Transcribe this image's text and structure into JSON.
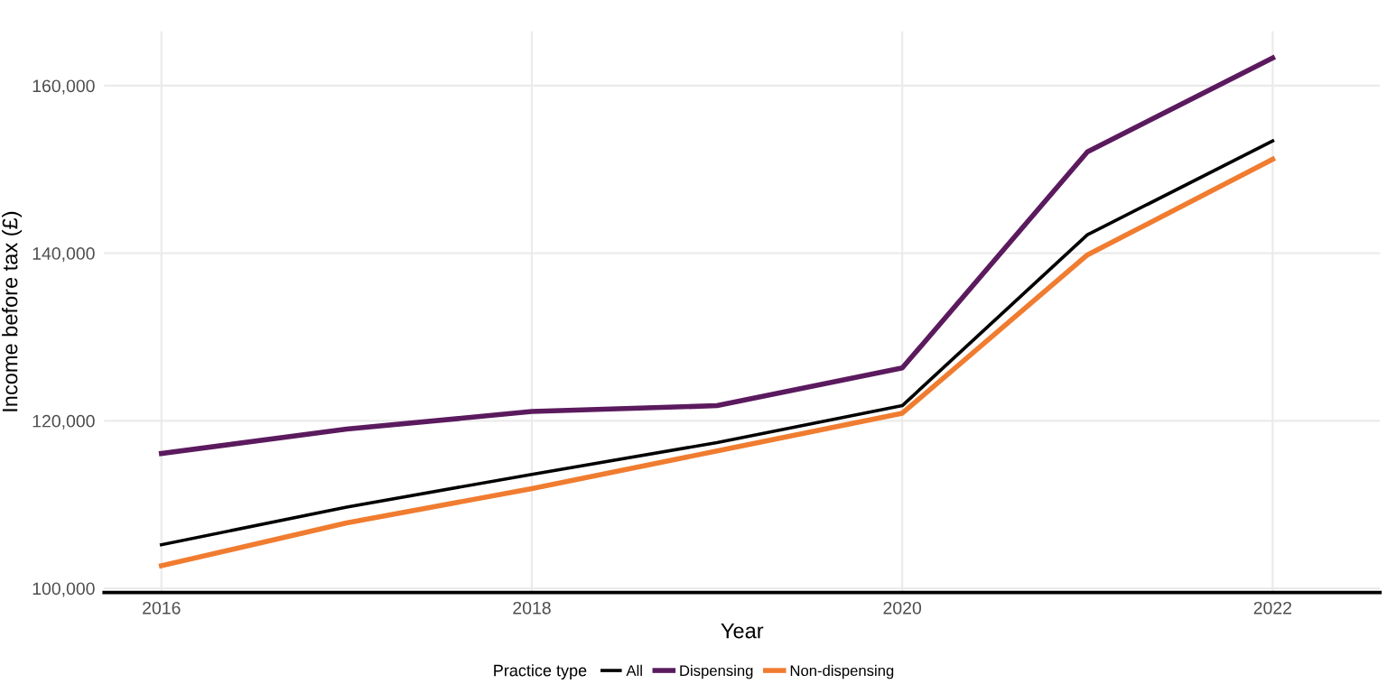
{
  "chart_data": {
    "type": "line",
    "xlabel": "Year",
    "ylabel": "Income before tax (£)",
    "legend_title": "Practice type",
    "x": [
      2016,
      2017,
      2018,
      2019,
      2020,
      2021,
      2022
    ],
    "series": [
      {
        "name": "All",
        "color": "#000000",
        "values": [
          105200,
          109700,
          113600,
          117400,
          121800,
          142200,
          153400
        ]
      },
      {
        "name": "Dispensing",
        "color": "#5b1a5e",
        "values": [
          116100,
          119000,
          121100,
          121800,
          126300,
          152100,
          163300
        ]
      },
      {
        "name": "Non-dispensing",
        "color": "#f07c30",
        "values": [
          102700,
          107800,
          111900,
          116400,
          120900,
          139800,
          151200
        ]
      }
    ],
    "xlim": [
      2015.69,
      2022.58
    ],
    "xticks": [
      2016,
      2018,
      2020,
      2022
    ],
    "ylim": [
      99500,
      166500
    ],
    "yticks": [
      {
        "value": 100000,
        "label": "100,000"
      },
      {
        "value": 120000,
        "label": "120,000"
      },
      {
        "value": 140000,
        "label": "140,000"
      },
      {
        "value": 160000,
        "label": "160,000"
      }
    ],
    "grid": true,
    "legend": "bottom",
    "marker": "none",
    "line_style": "solid"
  }
}
